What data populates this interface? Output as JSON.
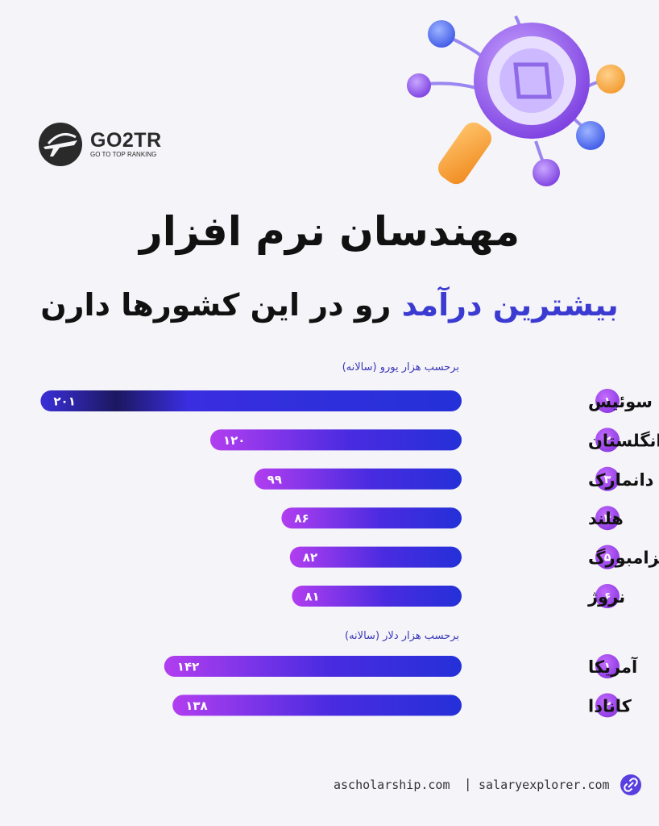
{
  "brand": {
    "name": "GO2TR",
    "tagline": "GO TO TOP RANKING"
  },
  "title_line1": "مهندسان نرم افزار",
  "title_line2_highlight": "بیشترین درآمد",
  "title_line2_rest": " رو در این کشورها دارن",
  "colors": {
    "accent": "#3b3bd1",
    "bar_start": "#2430d8",
    "bar_end": "#b23ef0",
    "rank_badge": "#a048e8"
  },
  "chart_data": [
    {
      "type": "bar",
      "orientation": "horizontal",
      "unit_label": "برحسب هزار یورو (سالانه)",
      "categories": [
        "سوئیس",
        "انگلستان",
        "دانمارک",
        "هلند",
        "لوکزامبورگ",
        "نروژ"
      ],
      "ranks": [
        "۱",
        "۲",
        "۳",
        "۴",
        "۵",
        "۶"
      ],
      "values": [
        201,
        120,
        99,
        86,
        82,
        81
      ],
      "value_labels": [
        "۲۰۱",
        "۱۲۰",
        "۹۹",
        "۸۶",
        "۸۲",
        "۸۱"
      ]
    },
    {
      "type": "bar",
      "orientation": "horizontal",
      "unit_label": "برحسب هزار دلار (سالانه)",
      "categories": [
        "آمریکا",
        "کانادا"
      ],
      "ranks": [
        "۱",
        "۲"
      ],
      "values": [
        142,
        138
      ],
      "value_labels": [
        "۱۴۲",
        "۱۳۸"
      ]
    }
  ],
  "footer": {
    "source1": "ascholarship.com",
    "separator": "|",
    "source2": "salaryexplorer.com",
    "icon": "link-icon"
  }
}
